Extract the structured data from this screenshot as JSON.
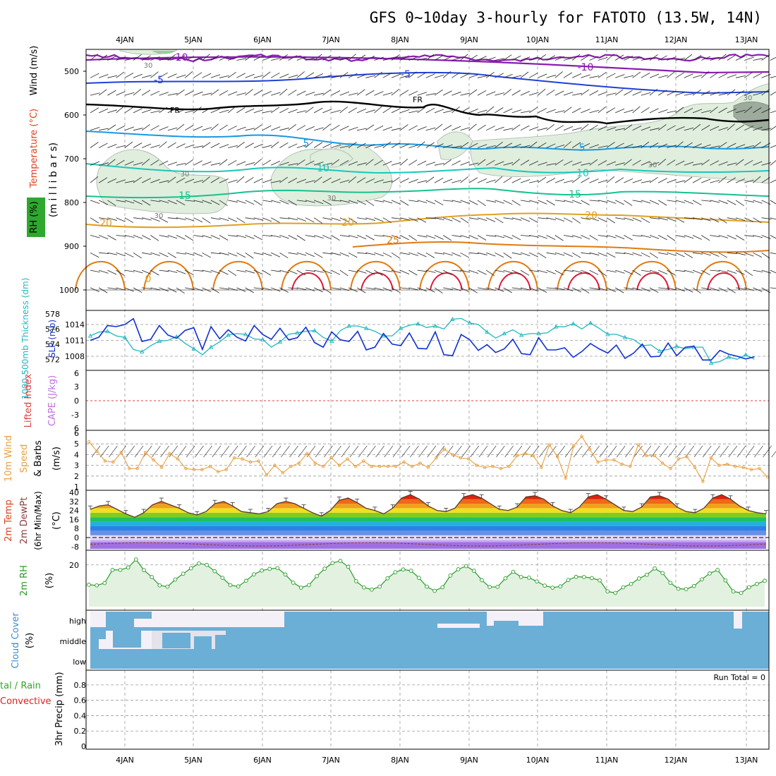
{
  "title": "GFS 0~10day 3-hourly for FATOTO (13.5W, 14N)",
  "days": [
    "4JAN",
    "5JAN",
    "6JAN",
    "7JAN",
    "8JAN",
    "9JAN",
    "10JAN",
    "11JAN",
    "12JAN",
    "13JAN"
  ],
  "colors": {
    "purple": "#8a1cb0",
    "blue": "#1f3fd8",
    "sky": "#1a98e0",
    "teal": "#18c8b8",
    "green": "#18c090",
    "orange": "#e0a020",
    "darkorange": "#e07a10",
    "red": "#e01838",
    "thick_blue": "#1030d0",
    "thick_cyan": "#20b8c0",
    "rh_green": "#2a9a2a",
    "cloud": "#6baed6",
    "cloud_clear": "#f4f0f8",
    "wind_orange": "#e8a040",
    "cape_purple": "#c070e0",
    "li_red": "#e04040",
    "run_total": "#000000"
  },
  "panels": {
    "upper": {
      "ylabel_wind": "Wind (m/s)",
      "ylabel_temp": "Temperature (°C)",
      "ylabel_rh": "RH (%)",
      "ylabel_units": "(m i l l i b a r s)",
      "ticks": [
        "500",
        "600",
        "700",
        "800",
        "900",
        "1000"
      ],
      "freezing_label": "FR",
      "rh_label": "30",
      "contour_labels": [
        {
          "text": "-10",
          "color": "purple"
        },
        {
          "text": "-10",
          "color": "purple"
        },
        {
          "text": "-5",
          "color": "blue"
        },
        {
          "text": "-5",
          "color": "blue"
        },
        {
          "text": "5",
          "color": "sky"
        },
        {
          "text": "5",
          "color": "sky"
        },
        {
          "text": "10",
          "color": "teal"
        },
        {
          "text": "10",
          "color": "teal"
        },
        {
          "text": "15",
          "color": "green"
        },
        {
          "text": "15",
          "color": "green"
        },
        {
          "text": "20",
          "color": "orange"
        },
        {
          "text": "20",
          "color": "orange"
        },
        {
          "text": "20",
          "color": "orange"
        },
        {
          "text": "25",
          "color": "darkorange"
        },
        {
          "text": "0",
          "color": "orange"
        }
      ]
    },
    "slp": {
      "ylabel_thick": "1000-500mb Thickness (dm)",
      "ylabel_slp": "SLP (mb)",
      "ticks_left": [
        "578",
        "576",
        "574",
        "572"
      ],
      "ticks_right": [
        "1014",
        "1011",
        "1008"
      ]
    },
    "cape": {
      "ylabel_li": "Lifted Index",
      "ylabel_cape": "CAPE (J/kg)",
      "ticks": [
        "6",
        "3",
        "0",
        "-3",
        "6"
      ]
    },
    "wind10": {
      "ylabel1": "10m Wind",
      "ylabel2": "Speed",
      "ylabel3": "& Barbs",
      "units": "(m/s)",
      "ticks": [
        "6",
        "5",
        "4",
        "3",
        "2",
        "1"
      ]
    },
    "temp2m": {
      "ylabel1": "2m Temp",
      "ylabel2": "2m DewPt",
      "ylabel3": "(6hr Min/Max)",
      "units": "(°C)",
      "ticks": [
        "40",
        "32",
        "24",
        "16",
        "8",
        "0",
        "-8"
      ]
    },
    "rh2m": {
      "ylabel": "2m RH",
      "units": "(%)",
      "ticks": [
        "20"
      ]
    },
    "cloud": {
      "ylabel1": "Cloud Cover",
      "units": "(%)",
      "levels": [
        "high",
        "middle",
        "low"
      ]
    },
    "precip": {
      "ylabel1": "tal / Rain",
      "ylabel2": "Convective",
      "ylabel3": "3hr Precip (mm)",
      "ticks": [
        "0.8",
        "0.6",
        "0.4",
        "0.2",
        "0"
      ],
      "run_total": "Run Total = 0"
    }
  },
  "chart_data": [
    {
      "type": "line",
      "title": "1000-500mb Thickness (dm) / SLP (mb)",
      "x_unit": "3-hourly steps from 3JAN 12Z",
      "series": [
        {
          "name": "SLP (mb)",
          "color": "thick_blue",
          "values": [
            1011,
            1011.6,
            1013.8,
            1013.6,
            1014,
            1015.1,
            1010.8,
            1011.2,
            1013.8,
            1012,
            1011.4,
            1012.9,
            1013.4,
            1009.3,
            1013.6,
            1011.3,
            1013,
            1011.6,
            1010.9,
            1013.8,
            1012.1,
            1011.2,
            1013.3,
            1011.1,
            1011.5,
            1013.5,
            1010.6,
            1009.7,
            1012.6,
            1011.1,
            1010.8,
            1012.7,
            1009.2,
            1009.7,
            1012.3,
            1010.3,
            1010,
            1012.4,
            1009.5,
            1009.4,
            1012.6,
            1008.3,
            1008.1,
            1012.1,
            1011.1,
            1009.1,
            1010.2,
            1008.7,
            1009.4,
            1011.2,
            1008.5,
            1008.3,
            1011.5,
            1009.2,
            1009.2,
            1009.6,
            1007.8,
            1008.9,
            1010.4,
            1009.4,
            1008.6,
            1010.1,
            1007.6,
            1008.6,
            1010.3,
            1007.9,
            1008,
            1010.5,
            1008.1,
            1009.7,
            1009.9,
            1007.3,
            1007.3,
            1009.1,
            1008.4,
            1008,
            1007.5,
            1007.9
          ]
        },
        {
          "name": "Thickness (dm)",
          "color": "thick_cyan",
          "values": [
            575.1,
            575.6,
            575.7,
            575.1,
            574.9,
            573.3,
            573,
            573.8,
            574.4,
            574.5,
            575,
            574.1,
            573.4,
            572.6,
            573.6,
            574.3,
            575.2,
            575.4,
            575.3,
            574.7,
            574.6,
            573.6,
            574.3,
            575.3,
            575.5,
            575.7,
            575.8,
            574.9,
            574.4,
            575.8,
            576.4,
            576.4,
            576.1,
            575.7,
            575.1,
            575.1,
            576.1,
            576.5,
            576.7,
            576.2,
            576.4,
            576,
            577.3,
            577.4,
            576.8,
            576.6,
            575.6,
            574.8,
            575.4,
            575.9,
            575.2,
            575.4,
            575.4,
            575.5,
            576.3,
            576.3,
            576.7,
            576,
            576.8,
            576.1,
            575.3,
            575.3,
            574.9,
            574.6,
            573.8,
            573.9,
            573.1,
            573.3,
            573.7,
            573.4,
            573.6,
            573.6,
            571.5,
            571.7,
            572.3,
            572,
            572.6,
            572
          ]
        }
      ],
      "ylim": [
        571,
        578
      ]
    },
    {
      "type": "line",
      "title": "10m Wind Speed (m/s)",
      "series": [
        {
          "name": "10m Wind Speed",
          "color": "wind_orange",
          "values": [
            5.2,
            4.3,
            3.4,
            3.3,
            4.2,
            2.7,
            2.7,
            4.2,
            3.5,
            2.8,
            4.1,
            3.6,
            2.7,
            2.6,
            2.6,
            2.9,
            2.4,
            2.6,
            3.7,
            3.6,
            3.3,
            3.4,
            2.1,
            3,
            2.3,
            2.9,
            3.2,
            4.1,
            3.2,
            2.9,
            3.7,
            3,
            3.6,
            2.9,
            3.4,
            2.9,
            2.9,
            2.9,
            2.9,
            3.3,
            2.9,
            3.2,
            2.8,
            3.7,
            4.5,
            4,
            3.7,
            3.6,
            3,
            2.8,
            2.9,
            2.7,
            2.9,
            3.9,
            4.1,
            3.9,
            2.8,
            4.9,
            3.8,
            1.8,
            4.8,
            5.7,
            4.5,
            3.3,
            3.5,
            3.5,
            3.1,
            2.9,
            4.9,
            3.9,
            3.9,
            3.2,
            2.7,
            3.6,
            3.8,
            2.8,
            1.5,
            3.7,
            3,
            3.1,
            2.9,
            2.8,
            2.6,
            2.7,
            1.9
          ]
        }
      ],
      "ylim": [
        1,
        6
      ]
    },
    {
      "type": "line",
      "title": "2m RH (%)",
      "series": [
        {
          "name": "2m RH",
          "color": "rh_green",
          "values": [
            10.5,
            10.2,
            11.3,
            17.6,
            17.6,
            18.8,
            22.6,
            17.5,
            14.2,
            10.2,
            9.6,
            13,
            15.8,
            18.4,
            20.7,
            20,
            17,
            13.8,
            10.3,
            9.7,
            12.4,
            15.5,
            17.3,
            18.1,
            18.5,
            15.4,
            11.5,
            9.1,
            10.3,
            14.6,
            18.2,
            20.9,
            21.9,
            19.1,
            12.2,
            9.2,
            8.2,
            9.6,
            13.6,
            16.5,
            17.8,
            17.2,
            13.8,
            9.6,
            7.6,
            9.3,
            14.9,
            17.9,
            19.4,
            17.2,
            12.7,
            9.4,
            9.5,
            13.6,
            16.7,
            14.2,
            13.9,
            12.1,
            10.1,
            9.1,
            9.7,
            12.8,
            14.3,
            14.2,
            13.7,
            12.6,
            7.3,
            6.6,
            9.3,
            10.9,
            13.5,
            15.3,
            18.3,
            16.1,
            11.4,
            8.6,
            8.4,
            9.9,
            13.1,
            15.9,
            17.6,
            12.6,
            7.3,
            6.6,
            9.3,
            10.9,
            12.4
          ]
        }
      ],
      "ylim": [
        0,
        26
      ]
    },
    {
      "type": "area",
      "title": "2m Temp (°C)",
      "series": [
        {
          "name": "2m Temp",
          "values": [
            25,
            28,
            29,
            25,
            21,
            18,
            22,
            29,
            32,
            29,
            26,
            22,
            20,
            23,
            30,
            32,
            28,
            23,
            22,
            21,
            23,
            30,
            32,
            30,
            26,
            22,
            19,
            24,
            33,
            35,
            31,
            26,
            24,
            21,
            26,
            35,
            38,
            34,
            28,
            24,
            23,
            26,
            36,
            38,
            35,
            30,
            25,
            24,
            27,
            36,
            37,
            34,
            28,
            24,
            22,
            27,
            36,
            38,
            34,
            29,
            24,
            23,
            27,
            36,
            37,
            34,
            27,
            23,
            22,
            26,
            35,
            38,
            34,
            28,
            24,
            22,
            21
          ]
        }
      ],
      "ylim": [
        -10,
        40
      ]
    },
    {
      "type": "table",
      "title": "Cloud Cover (%)",
      "rows": [
        "high",
        "middle",
        "low"
      ],
      "description": "low and middle mostly overcast; high clear from start to 6JAN 12Z, then overcast"
    }
  ]
}
